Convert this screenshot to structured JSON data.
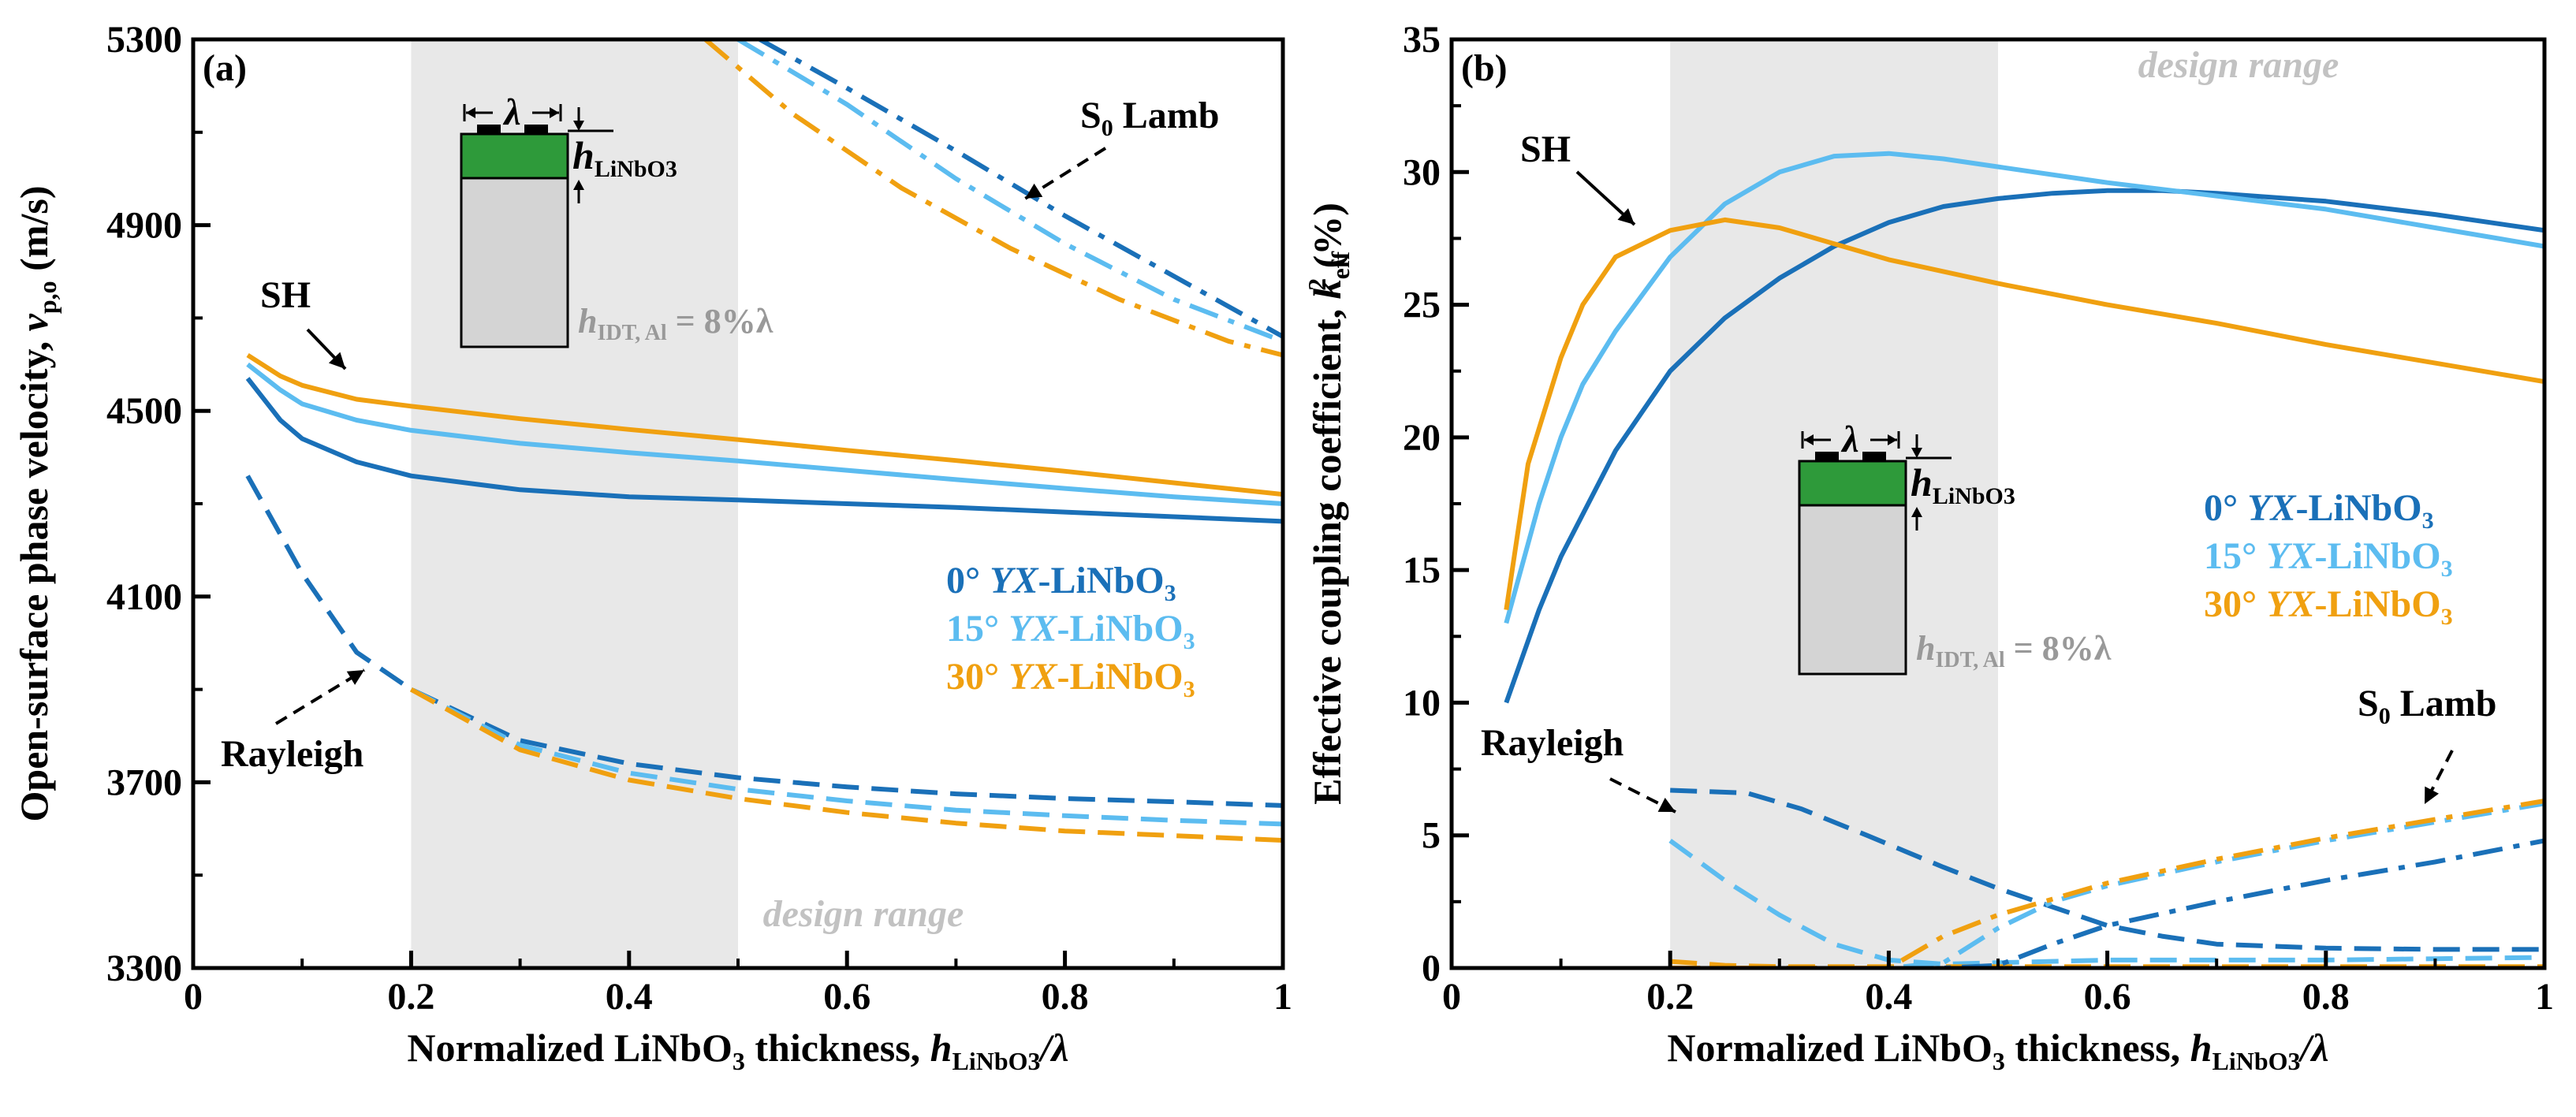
{
  "colors": {
    "c0": "#1a70b8",
    "c15": "#5cbcf0",
    "c30": "#f0a010",
    "design_shade": "#e8e8e8",
    "design_text": "#c2c2c2",
    "inset_green": "#2e9a3a",
    "inset_gray": "#d4d4d4"
  },
  "chart_data": [
    {
      "id": "a",
      "panel_label": "(a)",
      "type": "line",
      "xlabel": {
        "main": "Normalized LiNbO",
        "sub1": "3",
        "mid": " thickness, ",
        "h": "h",
        "sub2": "LiNbO3",
        "tail": "/λ"
      },
      "ylabel": {
        "main": "Open-surface phase velocity, ",
        "v": "v",
        "sub": "p,o",
        "tail": " (m/s)"
      },
      "xlim": [
        0,
        1
      ],
      "ylim": [
        3300,
        5300
      ],
      "xticks": [
        "0",
        "0.2",
        "0.4",
        "0.6",
        "0.8",
        "1"
      ],
      "yticks": [
        "3300",
        "3700",
        "4100",
        "4500",
        "4900",
        "5300"
      ],
      "design_range": [
        0.2,
        0.5
      ],
      "design_range_label": "design range",
      "legend": [
        {
          "angle": "0°",
          "cut": "YX",
          "mat": "-LiNbO",
          "sub": "3",
          "color_key": "c0"
        },
        {
          "angle": "15°",
          "cut": "YX",
          "mat": "-LiNbO",
          "sub": "3",
          "color_key": "c15"
        },
        {
          "angle": "30°",
          "cut": "YX",
          "mat": "-LiNbO",
          "sub": "3",
          "color_key": "c30"
        }
      ],
      "annotations": [
        {
          "text": "SH",
          "sub": ""
        },
        {
          "text": "Rayleigh",
          "sub": ""
        },
        {
          "text": "S",
          "sub": "0",
          "tail": " Lamb"
        }
      ],
      "inset": {
        "lambda": "λ",
        "h_label": "h",
        "h_sub": "LiNbO3",
        "idt_h": "h",
        "idt_sub": "IDT, Al",
        "idt_tail": " = 8%λ"
      },
      "series": [
        {
          "name": "SH 0°",
          "mode": "SH",
          "color_key": "c0",
          "style": "solid",
          "x": [
            0.05,
            0.08,
            0.1,
            0.15,
            0.2,
            0.3,
            0.4,
            0.5,
            0.6,
            0.7,
            0.8,
            0.9,
            1.0
          ],
          "y": [
            4570,
            4480,
            4440,
            4390,
            4360,
            4330,
            4315,
            4308,
            4300,
            4292,
            4282,
            4272,
            4262
          ]
        },
        {
          "name": "SH 15°",
          "mode": "SH",
          "color_key": "c15",
          "style": "solid",
          "x": [
            0.05,
            0.08,
            0.1,
            0.15,
            0.2,
            0.3,
            0.4,
            0.5,
            0.6,
            0.7,
            0.8,
            0.9,
            1.0
          ],
          "y": [
            4600,
            4545,
            4515,
            4480,
            4458,
            4430,
            4410,
            4392,
            4372,
            4352,
            4333,
            4315,
            4300
          ]
        },
        {
          "name": "SH 30°",
          "mode": "SH",
          "color_key": "c30",
          "style": "solid",
          "x": [
            0.05,
            0.08,
            0.1,
            0.15,
            0.2,
            0.3,
            0.4,
            0.5,
            0.6,
            0.7,
            0.8,
            0.9,
            1.0
          ],
          "y": [
            4620,
            4575,
            4555,
            4525,
            4510,
            4483,
            4460,
            4438,
            4415,
            4393,
            4370,
            4345,
            4320
          ]
        },
        {
          "name": "Rayleigh 0°",
          "mode": "Rayleigh",
          "color_key": "c0",
          "style": "dash",
          "x": [
            0.05,
            0.1,
            0.15,
            0.2,
            0.3,
            0.4,
            0.5,
            0.6,
            0.7,
            0.8,
            0.9,
            1.0
          ],
          "y": [
            4360,
            4150,
            3980,
            3900,
            3790,
            3740,
            3710,
            3690,
            3675,
            3665,
            3658,
            3650
          ]
        },
        {
          "name": "Rayleigh 15°",
          "mode": "Rayleigh",
          "color_key": "c15",
          "style": "dash",
          "x": [
            0.2,
            0.3,
            0.4,
            0.5,
            0.6,
            0.7,
            0.8,
            0.9,
            1.0
          ],
          "y": [
            3900,
            3780,
            3720,
            3685,
            3660,
            3640,
            3628,
            3618,
            3610
          ]
        },
        {
          "name": "Rayleigh 30°",
          "mode": "Rayleigh",
          "color_key": "c30",
          "style": "dash",
          "x": [
            0.2,
            0.3,
            0.4,
            0.5,
            0.6,
            0.7,
            0.8,
            0.9,
            1.0
          ],
          "y": [
            3900,
            3770,
            3705,
            3665,
            3635,
            3612,
            3595,
            3585,
            3575
          ]
        },
        {
          "name": "S0 0°",
          "mode": "S0",
          "color_key": "c0",
          "style": "dashdot",
          "x": [
            0.52,
            0.6,
            0.7,
            0.8,
            0.9,
            1.0
          ],
          "y": [
            5300,
            5195,
            5060,
            4920,
            4790,
            4660
          ]
        },
        {
          "name": "S0 15°",
          "mode": "S0",
          "color_key": "c15",
          "style": "dashdot",
          "x": [
            0.5,
            0.6,
            0.7,
            0.8,
            0.9,
            1.0
          ],
          "y": [
            5300,
            5160,
            5000,
            4860,
            4740,
            4650
          ]
        },
        {
          "name": "S0 30°",
          "mode": "S0",
          "color_key": "c30",
          "style": "dashdot",
          "x": [
            0.47,
            0.55,
            0.65,
            0.75,
            0.85,
            0.95,
            1.0
          ],
          "y": [
            5300,
            5140,
            4980,
            4850,
            4740,
            4650,
            4620
          ]
        }
      ]
    },
    {
      "id": "b",
      "panel_label": "(b)",
      "type": "line",
      "xlabel": {
        "main": "Normalized LiNbO",
        "sub1": "3",
        "mid": " thickness, ",
        "h": "h",
        "sub2": "LiNbO3",
        "tail": "/λ"
      },
      "ylabel": {
        "main": "Effective coupling coefficient, ",
        "k": "k",
        "sub": "eff",
        "sup": "2",
        "tail": " (%)"
      },
      "xlim": [
        0,
        1
      ],
      "ylim": [
        0,
        35
      ],
      "xticks": [
        "0",
        "0.2",
        "0.4",
        "0.6",
        "0.8",
        "1"
      ],
      "yticks": [
        "0",
        "5",
        "10",
        "15",
        "20",
        "25",
        "30",
        "35"
      ],
      "design_range": [
        0.2,
        0.5
      ],
      "design_range_label": "design range",
      "legend": [
        {
          "angle": "0°",
          "cut": "YX",
          "mat": "-LiNbO",
          "sub": "3",
          "color_key": "c0"
        },
        {
          "angle": "15°",
          "cut": "YX",
          "mat": "-LiNbO",
          "sub": "3",
          "color_key": "c15"
        },
        {
          "angle": "30°",
          "cut": "YX",
          "mat": "-LiNbO",
          "sub": "3",
          "color_key": "c30"
        }
      ],
      "annotations": [
        {
          "text": "SH",
          "sub": ""
        },
        {
          "text": "Rayleigh",
          "sub": ""
        },
        {
          "text": "S",
          "sub": "0",
          "tail": " Lamb"
        }
      ],
      "inset": {
        "lambda": "λ",
        "h_label": "h",
        "h_sub": "LiNbO3",
        "idt_h": "h",
        "idt_sub": "IDT, Al",
        "idt_tail": " = 8%λ"
      },
      "series": [
        {
          "name": "SH 0°",
          "mode": "SH",
          "color_key": "c0",
          "style": "solid",
          "x": [
            0.05,
            0.08,
            0.1,
            0.15,
            0.2,
            0.25,
            0.3,
            0.35,
            0.4,
            0.45,
            0.5,
            0.55,
            0.6,
            0.65,
            0.7,
            0.8,
            0.9,
            1.0
          ],
          "y": [
            10.0,
            13.5,
            15.5,
            19.5,
            22.5,
            24.5,
            26.0,
            27.2,
            28.1,
            28.7,
            29.0,
            29.2,
            29.3,
            29.3,
            29.2,
            28.9,
            28.4,
            27.8
          ]
        },
        {
          "name": "SH 15°",
          "mode": "SH",
          "color_key": "c15",
          "style": "solid",
          "x": [
            0.05,
            0.08,
            0.1,
            0.12,
            0.15,
            0.2,
            0.25,
            0.3,
            0.35,
            0.4,
            0.45,
            0.5,
            0.6,
            0.7,
            0.8,
            0.9,
            1.0
          ],
          "y": [
            13.0,
            17.5,
            20.0,
            22.0,
            24.0,
            26.8,
            28.8,
            30.0,
            30.6,
            30.7,
            30.5,
            30.2,
            29.6,
            29.1,
            28.6,
            27.9,
            27.2
          ]
        },
        {
          "name": "SH 30°",
          "mode": "SH",
          "color_key": "c30",
          "style": "solid",
          "x": [
            0.05,
            0.07,
            0.1,
            0.12,
            0.15,
            0.2,
            0.25,
            0.3,
            0.35,
            0.4,
            0.5,
            0.6,
            0.7,
            0.8,
            0.9,
            1.0
          ],
          "y": [
            13.5,
            19.0,
            23.0,
            25.0,
            26.8,
            27.8,
            28.2,
            27.9,
            27.3,
            26.7,
            25.8,
            25.0,
            24.3,
            23.5,
            22.8,
            22.1
          ]
        },
        {
          "name": "Rayleigh 0°",
          "mode": "Rayleigh",
          "color_key": "c0",
          "style": "dash",
          "x": [
            0.2,
            0.27,
            0.32,
            0.38,
            0.45,
            0.5,
            0.55,
            0.6,
            0.65,
            0.7,
            0.8,
            0.9,
            1.0
          ],
          "y": [
            6.7,
            6.6,
            6.0,
            5.0,
            3.8,
            3.0,
            2.3,
            1.6,
            1.2,
            0.9,
            0.75,
            0.7,
            0.7
          ]
        },
        {
          "name": "Rayleigh 15°",
          "mode": "Rayleigh",
          "color_key": "c15",
          "style": "dash",
          "x": [
            0.2,
            0.25,
            0.3,
            0.35,
            0.4,
            0.45,
            0.5,
            0.6,
            0.7,
            0.8,
            0.9,
            1.0
          ],
          "y": [
            4.8,
            3.3,
            2.0,
            0.9,
            0.3,
            0.15,
            0.2,
            0.3,
            0.3,
            0.3,
            0.35,
            0.4
          ]
        },
        {
          "name": "Rayleigh 30°",
          "mode": "Rayleigh",
          "color_key": "c30",
          "style": "dash",
          "x": [
            0.2,
            0.25,
            0.3,
            0.4,
            0.5,
            0.6,
            0.7,
            0.8,
            0.9,
            1.0
          ],
          "y": [
            0.25,
            0.1,
            0.05,
            0.05,
            0.05,
            0.05,
            0.05,
            0.05,
            0.05,
            0.05
          ]
        },
        {
          "name": "S0 0°",
          "mode": "S0",
          "color_key": "c0",
          "style": "dashdot",
          "x": [
            0.2,
            0.3,
            0.4,
            0.45,
            0.5,
            0.55,
            0.6,
            0.7,
            0.8,
            0.9,
            1.0
          ],
          "y": [
            0.0,
            0.0,
            0.0,
            0.0,
            0.1,
            0.9,
            1.6,
            2.5,
            3.3,
            4.0,
            4.8
          ]
        },
        {
          "name": "S0 15°",
          "mode": "S0",
          "color_key": "c15",
          "style": "dashdot",
          "x": [
            0.2,
            0.3,
            0.4,
            0.45,
            0.5,
            0.55,
            0.6,
            0.7,
            0.8,
            0.9,
            1.0
          ],
          "y": [
            0.0,
            0.0,
            0.0,
            0.2,
            1.5,
            2.5,
            3.1,
            4.0,
            4.8,
            5.5,
            6.2
          ]
        },
        {
          "name": "S0 30°",
          "mode": "S0",
          "color_key": "c30",
          "style": "dashdot",
          "x": [
            0.2,
            0.3,
            0.4,
            0.45,
            0.5,
            0.55,
            0.6,
            0.7,
            0.8,
            0.9,
            1.0
          ],
          "y": [
            0.0,
            0.0,
            0.0,
            1.2,
            2.0,
            2.6,
            3.2,
            4.1,
            4.9,
            5.6,
            6.3
          ]
        }
      ]
    }
  ]
}
